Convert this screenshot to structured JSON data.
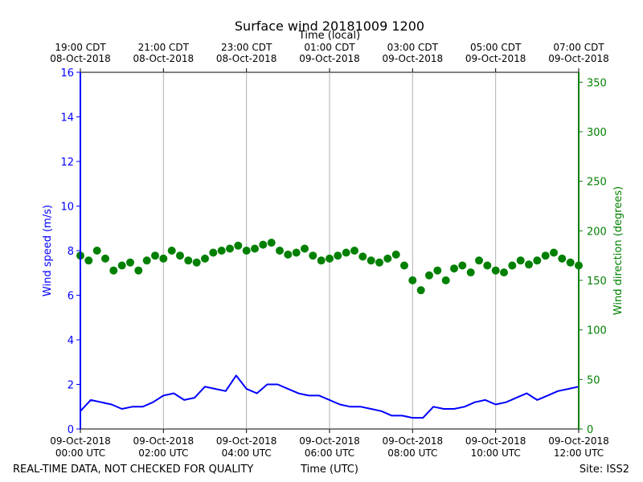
{
  "chart_data": {
    "type": "scatter",
    "title": "Surface wind 20181009 1200",
    "top_xlabel": "Time (local)",
    "bottom_xlabel": "Time (UTC)",
    "ylabel_left": "Wind speed (m/s)",
    "ylabel_right": "Wind direction (degrees)",
    "footer_left": "REAL-TIME DATA, NOT CHECKED FOR QUALITY",
    "footer_right": "Site: ISS2",
    "xlim_hours": [
      0,
      12
    ],
    "ylim_left": [
      0,
      16
    ],
    "ylim_right": [
      0,
      360
    ],
    "bottom_ticks": [
      {
        "hour": 0,
        "line1": "09-Oct-2018",
        "line2": "00:00 UTC"
      },
      {
        "hour": 2,
        "line1": "09-Oct-2018",
        "line2": "02:00 UTC"
      },
      {
        "hour": 4,
        "line1": "09-Oct-2018",
        "line2": "04:00 UTC"
      },
      {
        "hour": 6,
        "line1": "09-Oct-2018",
        "line2": "06:00 UTC"
      },
      {
        "hour": 8,
        "line1": "09-Oct-2018",
        "line2": "08:00 UTC"
      },
      {
        "hour": 10,
        "line1": "09-Oct-2018",
        "line2": "10:00 UTC"
      },
      {
        "hour": 12,
        "line1": "09-Oct-2018",
        "line2": "12:00 UTC"
      }
    ],
    "top_ticks": [
      {
        "hour": 0,
        "line1": "19:00 CDT",
        "line2": "08-Oct-2018"
      },
      {
        "hour": 2,
        "line1": "21:00 CDT",
        "line2": "08-Oct-2018"
      },
      {
        "hour": 4,
        "line1": "23:00 CDT",
        "line2": "08-Oct-2018"
      },
      {
        "hour": 6,
        "line1": "01:00 CDT",
        "line2": "09-Oct-2018"
      },
      {
        "hour": 8,
        "line1": "03:00 CDT",
        "line2": "09-Oct-2018"
      },
      {
        "hour": 10,
        "line1": "05:00 CDT",
        "line2": "09-Oct-2018"
      },
      {
        "hour": 12,
        "line1": "07:00 CDT",
        "line2": "09-Oct-2018"
      }
    ],
    "left_ticks": [
      0,
      2,
      4,
      6,
      8,
      10,
      12,
      14,
      16
    ],
    "right_ticks": [
      0,
      50,
      100,
      150,
      200,
      250,
      300,
      350
    ],
    "series": [
      {
        "name": "Wind speed",
        "axis": "left",
        "style": "line",
        "color": "#0000ff",
        "x": [
          0,
          0.25,
          0.5,
          0.75,
          1,
          1.25,
          1.5,
          1.75,
          2,
          2.25,
          2.5,
          2.75,
          3,
          3.25,
          3.5,
          3.75,
          4,
          4.25,
          4.5,
          4.75,
          5,
          5.25,
          5.5,
          5.75,
          6,
          6.25,
          6.5,
          6.75,
          7,
          7.25,
          7.5,
          7.75,
          8,
          8.25,
          8.5,
          8.75,
          9,
          9.25,
          9.5,
          9.75,
          10,
          10.25,
          10.5,
          10.75,
          11,
          11.25,
          11.5,
          11.75,
          12
        ],
        "y": [
          0.8,
          1.3,
          1.2,
          1.1,
          0.9,
          1.0,
          1.0,
          1.2,
          1.5,
          1.6,
          1.3,
          1.4,
          1.9,
          1.8,
          1.7,
          2.4,
          1.8,
          1.6,
          2.0,
          2.0,
          1.8,
          1.6,
          1.5,
          1.5,
          1.3,
          1.1,
          1.0,
          1.0,
          0.9,
          0.8,
          0.6,
          0.6,
          0.5,
          0.5,
          1.0,
          0.9,
          0.9,
          1.0,
          1.2,
          1.3,
          1.1,
          1.2,
          1.4,
          1.6,
          1.3,
          1.5,
          1.7,
          1.8,
          1.9
        ]
      },
      {
        "name": "Wind direction",
        "axis": "right",
        "style": "points",
        "color": "#008000",
        "x": [
          0,
          0.2,
          0.4,
          0.6,
          0.8,
          1,
          1.2,
          1.4,
          1.6,
          1.8,
          2,
          2.2,
          2.4,
          2.6,
          2.8,
          3,
          3.2,
          3.4,
          3.6,
          3.8,
          4,
          4.2,
          4.4,
          4.6,
          4.8,
          5,
          5.2,
          5.4,
          5.6,
          5.8,
          6,
          6.2,
          6.4,
          6.6,
          6.8,
          7,
          7.2,
          7.4,
          7.6,
          7.8,
          8,
          8.2,
          8.4,
          8.6,
          8.8,
          9,
          9.2,
          9.4,
          9.6,
          9.8,
          10,
          10.2,
          10.4,
          10.6,
          10.8,
          11,
          11.2,
          11.4,
          11.6,
          11.8,
          12
        ],
        "y": [
          175,
          170,
          180,
          172,
          160,
          165,
          168,
          160,
          170,
          175,
          172,
          180,
          175,
          170,
          168,
          172,
          178,
          180,
          182,
          185,
          180,
          182,
          186,
          188,
          180,
          176,
          178,
          182,
          175,
          170,
          172,
          175,
          178,
          180,
          174,
          170,
          168,
          172,
          176,
          165,
          150,
          140,
          155,
          160,
          150,
          162,
          165,
          158,
          170,
          165,
          160,
          158,
          165,
          170,
          166,
          170,
          175,
          178,
          172,
          168,
          165
        ]
      }
    ]
  }
}
